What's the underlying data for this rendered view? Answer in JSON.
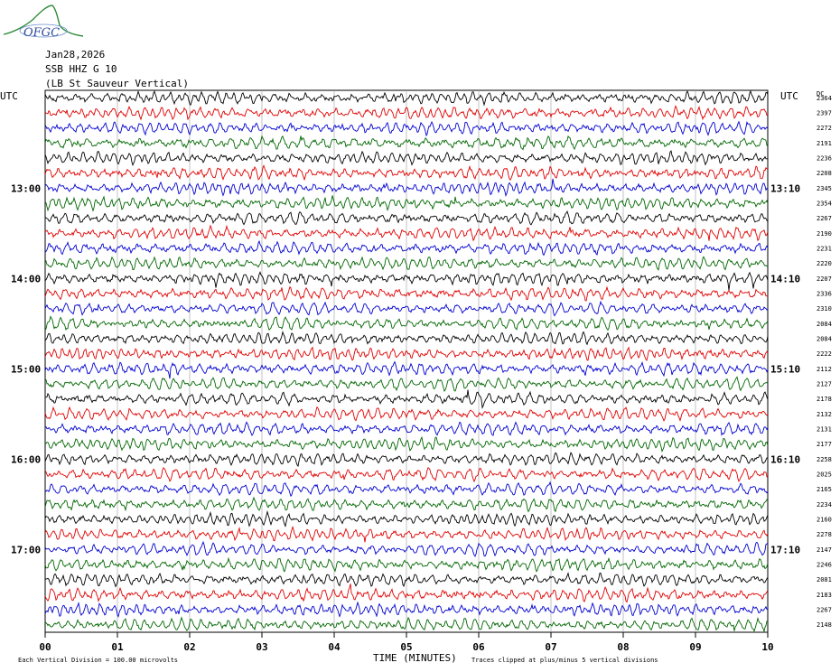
{
  "header": {
    "logo": "OFGC",
    "date": "Jan28,2026",
    "station": "SSB HHZ G 10",
    "location": "(LB  St Sauveur Vertical)"
  },
  "chart_data": {
    "type": "line",
    "title": "",
    "left_unit": "UTC",
    "right_unit": "UTC",
    "right_header": "DC",
    "left_times": [
      "13:00",
      "14:00",
      "15:00",
      "16:00",
      "17:00"
    ],
    "right_times": [
      "13:10",
      "14:10",
      "15:10",
      "16:10",
      "17:10"
    ],
    "xlabel": "TIME (MINUTES)",
    "x_ticks": [
      "00",
      "01",
      "02",
      "03",
      "04",
      "05",
      "06",
      "07",
      "08",
      "09",
      "10"
    ],
    "xlim": [
      0,
      10
    ],
    "trace_colors": [
      "#000000",
      "#e00000",
      "#0000d0",
      "#006600"
    ],
    "trace_count": 36,
    "dc_offsets": [
      2364,
      2397,
      2272,
      2191,
      2236,
      2208,
      2345,
      2354,
      2267,
      2190,
      2231,
      2220,
      2207,
      2336,
      2310,
      2084,
      2084,
      2222,
      2112,
      2127,
      2178,
      2132,
      2131,
      2177,
      2258,
      2025,
      2165,
      2234,
      2160,
      2278,
      2147,
      2246,
      2081,
      2183,
      2267,
      2148
    ],
    "grid": true,
    "footer_left": "Each Vertical Division =  100.00 microvolts",
    "footer_right": "Traces clipped at plus/minus 5 vertical divisions"
  }
}
